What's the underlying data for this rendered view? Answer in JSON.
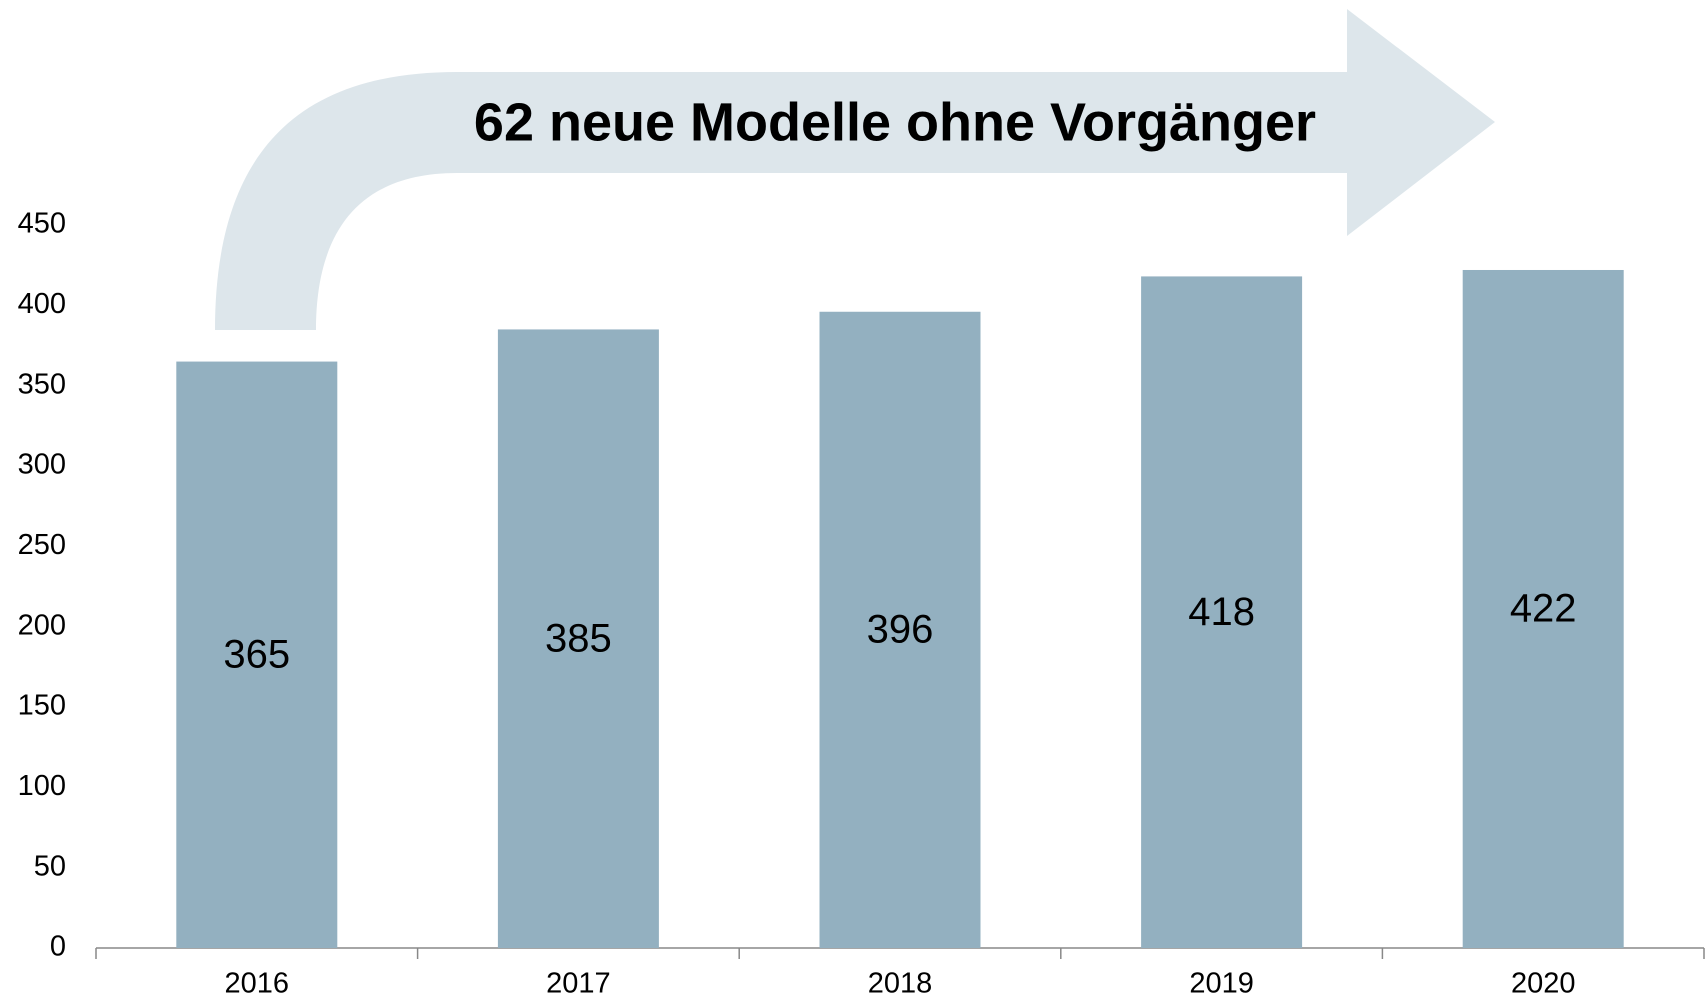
{
  "chart_data": {
    "type": "bar",
    "annotation": "62 neue Modelle ohne Vorgänger",
    "categories": [
      "2016",
      "2017",
      "2018",
      "2019",
      "2020"
    ],
    "values": [
      365,
      385,
      396,
      418,
      422
    ],
    "color": "#93b0c0",
    "ylim": [
      0,
      450
    ],
    "yticks": [
      0,
      50,
      100,
      150,
      200,
      250,
      300,
      350,
      400,
      450
    ],
    "grid": false
  }
}
